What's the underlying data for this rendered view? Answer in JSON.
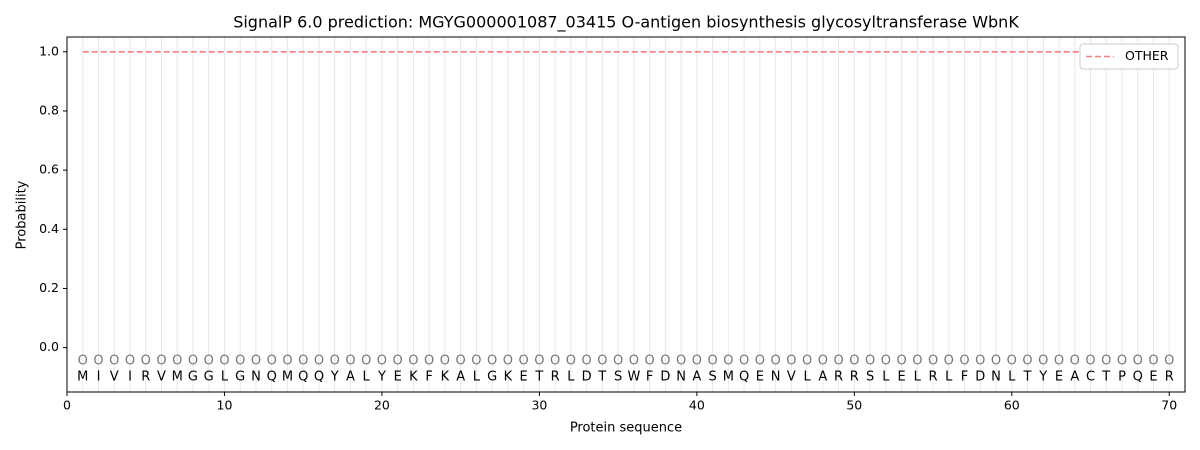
{
  "chart_data": {
    "type": "line",
    "title": "SignalP 6.0 prediction: MGYG000001087_03415 O-antigen biosynthesis glycosyltransferase WbnK",
    "xlabel": "Protein sequence",
    "ylabel": "Probability",
    "x": [
      1,
      2,
      3,
      4,
      5,
      6,
      7,
      8,
      9,
      10,
      11,
      12,
      13,
      14,
      15,
      16,
      17,
      18,
      19,
      20,
      21,
      22,
      23,
      24,
      25,
      26,
      27,
      28,
      29,
      30,
      31,
      32,
      33,
      34,
      35,
      36,
      37,
      38,
      39,
      40,
      41,
      42,
      43,
      44,
      45,
      46,
      47,
      48,
      49,
      50,
      51,
      52,
      53,
      54,
      55,
      56,
      57,
      58,
      59,
      60,
      61,
      62,
      63,
      64,
      65,
      66,
      67,
      68,
      69,
      70
    ],
    "sequence": [
      "M",
      "I",
      "V",
      "I",
      "R",
      "V",
      "M",
      "G",
      "G",
      "L",
      "G",
      "N",
      "Q",
      "M",
      "Q",
      "Q",
      "Y",
      "A",
      "L",
      "Y",
      "E",
      "K",
      "F",
      "K",
      "A",
      "L",
      "G",
      "K",
      "E",
      "T",
      "R",
      "L",
      "D",
      "T",
      "S",
      "W",
      "F",
      "D",
      "N",
      "A",
      "S",
      "M",
      "Q",
      "E",
      "N",
      "V",
      "L",
      "A",
      "R",
      "R",
      "S",
      "L",
      "E",
      "L",
      "R",
      "L",
      "F",
      "D",
      "N",
      "L",
      "T",
      "Y",
      "E",
      "A",
      "C",
      "T",
      "P",
      "Q",
      "E",
      "R"
    ],
    "predicted_labels": [
      "O",
      "O",
      "O",
      "O",
      "O",
      "O",
      "O",
      "O",
      "O",
      "O",
      "O",
      "O",
      "O",
      "O",
      "O",
      "O",
      "O",
      "O",
      "O",
      "O",
      "O",
      "O",
      "O",
      "O",
      "O",
      "O",
      "O",
      "O",
      "O",
      "O",
      "O",
      "O",
      "O",
      "O",
      "O",
      "O",
      "O",
      "O",
      "O",
      "O",
      "O",
      "O",
      "O",
      "O",
      "O",
      "O",
      "O",
      "O",
      "O",
      "O",
      "O",
      "O",
      "O",
      "O",
      "O",
      "O",
      "O",
      "O",
      "O",
      "O",
      "O",
      "O",
      "O",
      "O",
      "O",
      "O",
      "O",
      "O",
      "O",
      "O"
    ],
    "series": [
      {
        "name": "OTHER",
        "color": "#f08080",
        "dash": true,
        "values": [
          1,
          1,
          1,
          1,
          1,
          1,
          1,
          1,
          1,
          1,
          1,
          1,
          1,
          1,
          1,
          1,
          1,
          1,
          1,
          1,
          1,
          1,
          1,
          1,
          1,
          1,
          1,
          1,
          1,
          1,
          1,
          1,
          1,
          1,
          1,
          1,
          1,
          1,
          1,
          1,
          1,
          1,
          1,
          1,
          1,
          1,
          1,
          1,
          1,
          1,
          1,
          1,
          1,
          1,
          1,
          1,
          1,
          1,
          1,
          1,
          1,
          1,
          1,
          1,
          1,
          1,
          1,
          1,
          1,
          1
        ]
      }
    ],
    "xlim": [
      0,
      71
    ],
    "xticks": [
      0,
      10,
      20,
      30,
      40,
      50,
      60,
      70
    ],
    "ylim": [
      -0.15,
      1.05
    ],
    "yticks": [
      {
        "value": 0,
        "label": "0.0"
      },
      0.2,
      0.4,
      0.6,
      0.8,
      {
        "value": 1,
        "label": "1.0"
      }
    ],
    "legend": "upper right"
  }
}
